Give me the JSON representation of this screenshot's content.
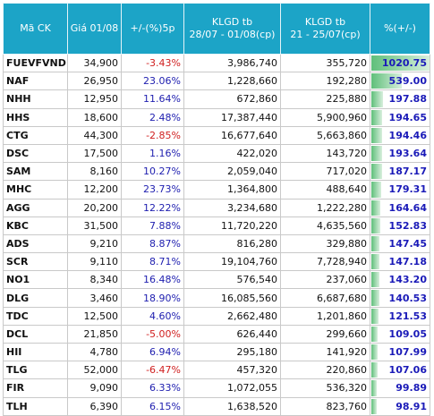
{
  "table": {
    "header": [
      [
        "Mã CK"
      ],
      [
        "Giá 01/08"
      ],
      [
        "+/-(%)5p"
      ],
      [
        "KLGD tb",
        "28/07 - 01/08(cp)"
      ],
      [
        "KLGD tb",
        "21 - 25/07(cp)"
      ],
      [
        "%(+/-)"
      ]
    ],
    "rows": [
      [
        "FUEVFVND",
        "34,900",
        "-3.43%",
        "3,986,740",
        "355,720",
        "1020.75"
      ],
      [
        "NAF",
        "26,950",
        "23.06%",
        "1,228,660",
        "192,280",
        "539.00"
      ],
      [
        "NHH",
        "12,950",
        "11.64%",
        "672,860",
        "225,880",
        "197.88"
      ],
      [
        "HHS",
        "18,600",
        "2.48%",
        "17,387,440",
        "5,900,960",
        "194.65"
      ],
      [
        "CTG",
        "44,300",
        "-2.85%",
        "16,677,640",
        "5,663,860",
        "194.46"
      ],
      [
        "DSC",
        "17,500",
        "1.16%",
        "422,020",
        "143,720",
        "193.64"
      ],
      [
        "SAM",
        "8,160",
        "10.27%",
        "2,059,040",
        "717,020",
        "187.17"
      ],
      [
        "MHC",
        "12,200",
        "23.73%",
        "1,364,800",
        "488,640",
        "179.31"
      ],
      [
        "AGG",
        "20,200",
        "12.22%",
        "3,234,680",
        "1,222,280",
        "164.64"
      ],
      [
        "KBC",
        "31,500",
        "7.88%",
        "11,720,220",
        "4,635,560",
        "152.83"
      ],
      [
        "ADS",
        "9,210",
        "8.87%",
        "816,280",
        "329,880",
        "147.45"
      ],
      [
        "SCR",
        "9,110",
        "8.71%",
        "19,104,760",
        "7,728,940",
        "147.18"
      ],
      [
        "NO1",
        "8,340",
        "16.48%",
        "576,540",
        "237,060",
        "143.20"
      ],
      [
        "DLG",
        "3,460",
        "18.90%",
        "16,085,560",
        "6,687,680",
        "140.53"
      ],
      [
        "TDC",
        "12,500",
        "4.60%",
        "2,662,480",
        "1,201,860",
        "121.53"
      ],
      [
        "DCL",
        "21,850",
        "-5.00%",
        "626,440",
        "299,660",
        "109.05"
      ],
      [
        "HII",
        "4,780",
        "6.94%",
        "295,180",
        "141,920",
        "107.99"
      ],
      [
        "TLG",
        "52,000",
        "-6.47%",
        "457,320",
        "220,860",
        "107.06"
      ],
      [
        "FIR",
        "9,090",
        "6.33%",
        "1,072,055",
        "536,320",
        "99.89"
      ],
      [
        "TLH",
        "6,390",
        "6.15%",
        "1,638,520",
        "823,760",
        "98.91"
      ]
    ]
  }
}
